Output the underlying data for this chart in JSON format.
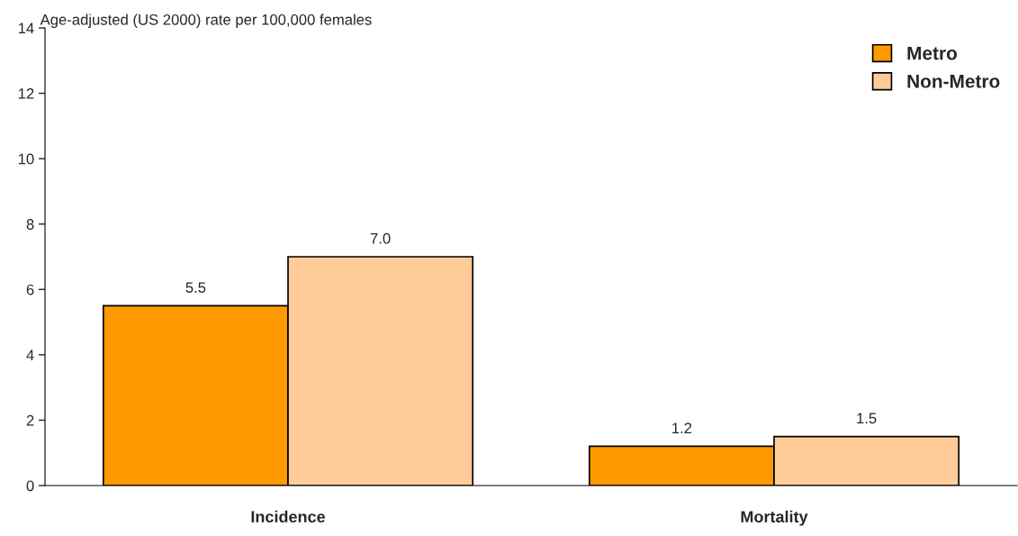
{
  "chart_data": {
    "type": "bar",
    "ylabel": "Age-adjusted (US 2000) rate per 100,000 females",
    "categories": [
      "Incidence",
      "Mortality"
    ],
    "series": [
      {
        "name": "Metro",
        "color": "#ff9900",
        "values": [
          5.5,
          1.2
        ],
        "value_labels": [
          "5.5",
          "1.2"
        ]
      },
      {
        "name": "Non-Metro",
        "color": "#ffcc99",
        "values": [
          7.0,
          1.5
        ],
        "value_labels": [
          "7.0",
          "1.5"
        ]
      }
    ],
    "ylim": [
      0,
      14
    ],
    "yticks": [
      0,
      2,
      4,
      6,
      8,
      10,
      12,
      14
    ],
    "grid": false,
    "legend": "top right"
  }
}
